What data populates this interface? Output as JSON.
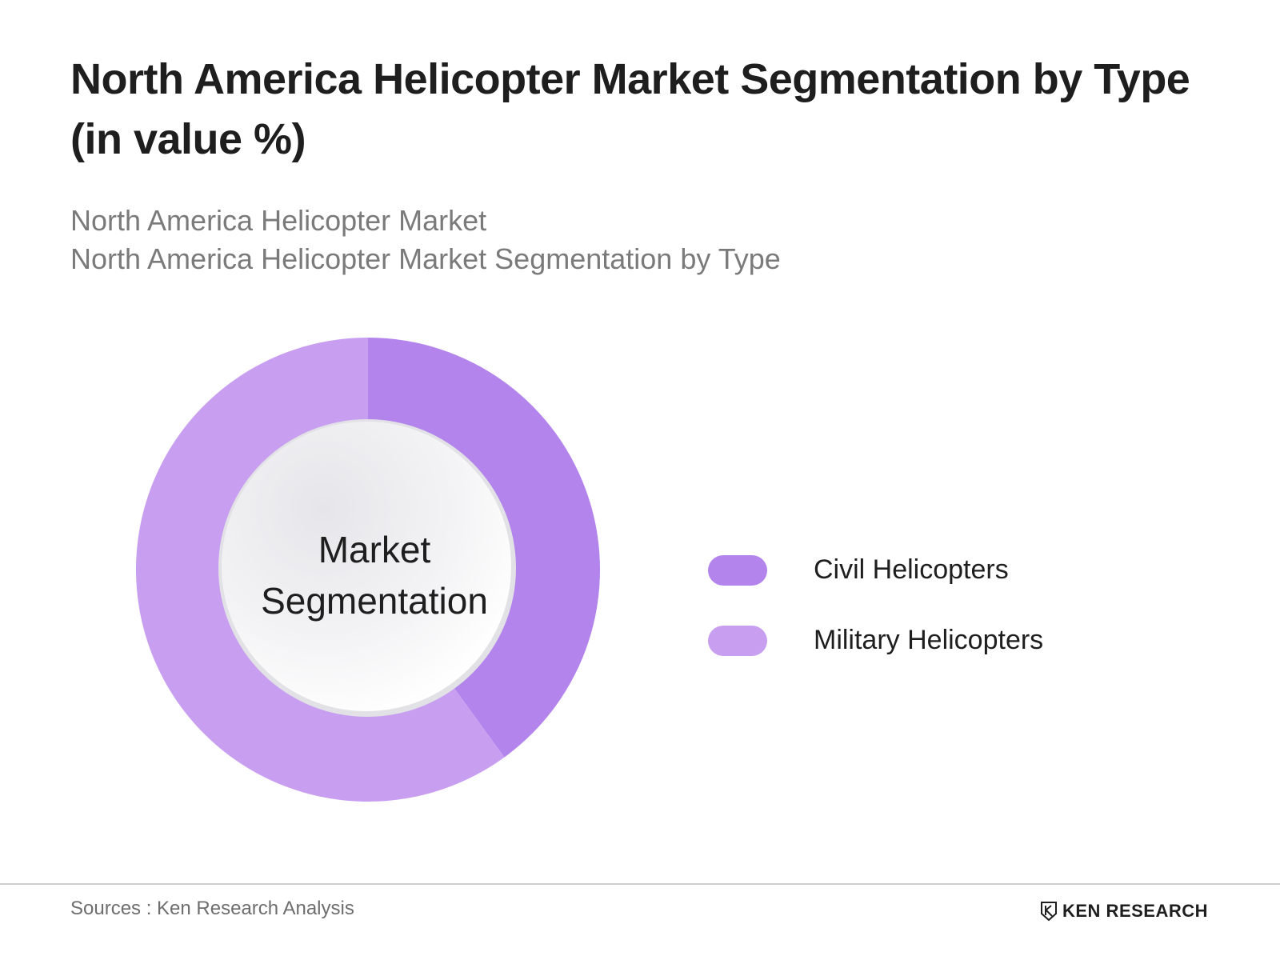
{
  "header": {
    "title": "North America Helicopter Market Segmentation by Type (in value %)",
    "subtitle_lines": [
      "North America Helicopter Market",
      "North America Helicopter Market Segmentation by Type"
    ]
  },
  "chart_data": {
    "type": "pie",
    "donut": true,
    "center_label": "Market Segmentation",
    "categories": [
      "Civil Helicopters",
      "Military Helicopters"
    ],
    "values": [
      40,
      60
    ],
    "colors": [
      "#b385ec",
      "#c89ff0"
    ],
    "legend_position": "right"
  },
  "footer": {
    "sources": "Sources : Ken Research Analysis",
    "brand": "KEN RESEARCH"
  }
}
